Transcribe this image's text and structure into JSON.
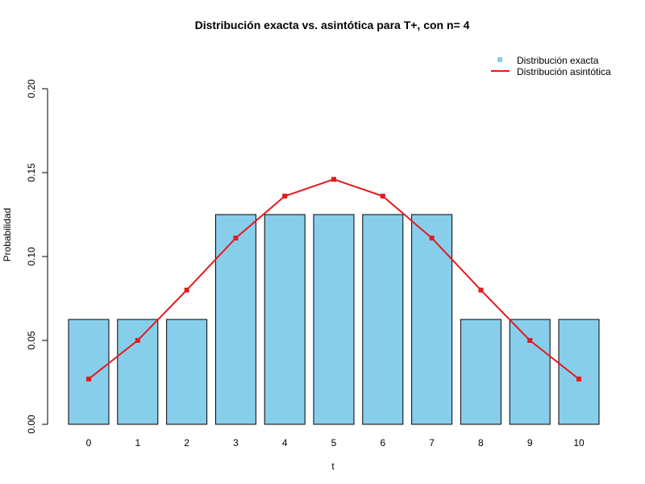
{
  "chart_data": {
    "type": "bar",
    "title": "Distribución exacta vs. asintótica para T+, con n= 4",
    "xlabel": "t",
    "ylabel": "Probabilidad",
    "ylim": [
      0,
      0.2
    ],
    "yticks": [
      "0.00",
      "0.05",
      "0.10",
      "0.15",
      "0.20"
    ],
    "categories": [
      "0",
      "1",
      "2",
      "3",
      "4",
      "5",
      "6",
      "7",
      "8",
      "9",
      "10"
    ],
    "series": [
      {
        "name": "Distribución exacta",
        "type": "bar",
        "color": "#87CEEB",
        "values": [
          0.0625,
          0.0625,
          0.0625,
          0.125,
          0.125,
          0.125,
          0.125,
          0.125,
          0.0625,
          0.0625,
          0.0625
        ]
      },
      {
        "name": "Distribución asintótica",
        "type": "line",
        "color": "#E41A1C",
        "values": [
          0.027,
          0.05,
          0.08,
          0.111,
          0.136,
          0.146,
          0.136,
          0.111,
          0.08,
          0.05,
          0.027
        ]
      }
    ],
    "legend_position": "top-right",
    "grid": false
  }
}
